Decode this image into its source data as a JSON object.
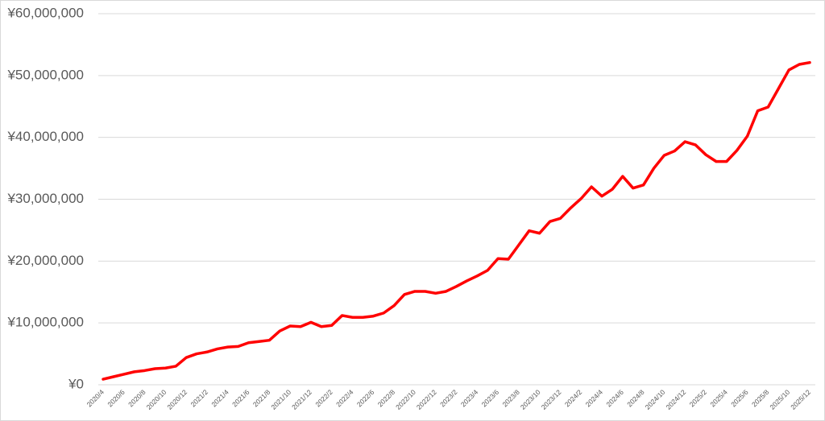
{
  "chart_data": {
    "type": "line",
    "color": "#ff0000",
    "categories": [
      "2020/4",
      null,
      "2020/6",
      null,
      "2020/8",
      null,
      "2020/10",
      null,
      "2020/12",
      null,
      "2021/2",
      null,
      "2021/4",
      null,
      "2021/6",
      null,
      "2021/8",
      null,
      "2021/10",
      null,
      "2021/12",
      null,
      "2022/2",
      null,
      "2022/4",
      null,
      "2022/6",
      null,
      "2022/8",
      null,
      "2022/10",
      null,
      "2022/12",
      null,
      "2023/2",
      null,
      "2023/4",
      null,
      "2023/6",
      null,
      "2023/8",
      null,
      "2023/10",
      null,
      "2023/12",
      null,
      "2024/2",
      null,
      "2024/4",
      null,
      "2024/6",
      null,
      "2024/8",
      null,
      "2024/10",
      null,
      "2024/12",
      null,
      "2025/2",
      null,
      "2025/4",
      null,
      "2025/6",
      null,
      "2025/8",
      null,
      "2025/10",
      null,
      "2025/12"
    ],
    "values": [
      900000,
      1300000,
      1700000,
      2100000,
      2300000,
      2600000,
      2700000,
      3000000,
      4400000,
      5000000,
      5300000,
      5800000,
      6100000,
      6200000,
      6800000,
      7000000,
      7200000,
      8700000,
      9500000,
      9400000,
      10100000,
      9400000,
      9600000,
      11200000,
      10900000,
      10900000,
      11100000,
      11600000,
      12800000,
      14600000,
      15100000,
      15100000,
      14800000,
      15100000,
      15900000,
      16800000,
      17600000,
      18500000,
      20400000,
      20300000,
      22600000,
      24900000,
      24500000,
      26400000,
      26900000,
      28600000,
      30100000,
      32000000,
      30500000,
      31600000,
      33700000,
      31800000,
      32300000,
      35000000,
      37100000,
      37800000,
      39300000,
      38800000,
      37200000,
      36100000,
      36100000,
      37900000,
      40200000,
      44300000,
      44900000,
      47900000,
      50900000,
      51800000,
      52100000
    ],
    "ylim": [
      0,
      60000000
    ],
    "yticks": [
      {
        "value": 0,
        "label": "¥0"
      },
      {
        "value": 10000000,
        "label": "¥10,000,000"
      },
      {
        "value": 20000000,
        "label": "¥20,000,000"
      },
      {
        "value": 30000000,
        "label": "¥30,000,000"
      },
      {
        "value": 40000000,
        "label": "¥40,000,000"
      },
      {
        "value": 50000000,
        "label": "¥50,000,000"
      },
      {
        "value": 60000000,
        "label": "¥60,000,000"
      }
    ],
    "grid": true
  }
}
